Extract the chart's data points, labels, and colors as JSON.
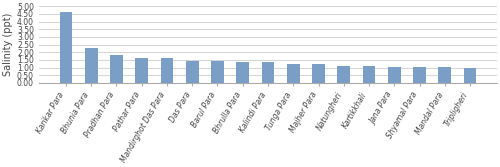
{
  "categories": [
    "Karikar Para",
    "Bhunia Para",
    "Pradhan Para",
    "Pathar Para",
    "Mandirghot Das Para",
    "Das Para",
    "Barul Para",
    "Bhrulla Para",
    "Kalindi Para",
    "Tunga Para",
    "Majher Para",
    "Natungheri",
    "Kartikkhali",
    "Jana Para",
    "Shyamal Para",
    "Mandal Para",
    "Tripligheri"
  ],
  "values": [
    4.65,
    2.25,
    1.8,
    1.65,
    1.63,
    1.42,
    1.42,
    1.38,
    1.38,
    1.25,
    1.22,
    1.08,
    1.08,
    1.05,
    1.02,
    1.02,
    0.98
  ],
  "bar_color": "#7B9EC6",
  "ylabel": "Salinity (ppt)",
  "ylim": [
    0,
    5.0
  ],
  "yticks": [
    0.0,
    0.5,
    1.0,
    1.5,
    2.0,
    2.5,
    3.0,
    3.5,
    4.0,
    4.5,
    5.0
  ],
  "tick_fontsize": 5.5,
  "ylabel_fontsize": 7,
  "bar_width": 0.5,
  "bg_color": "#FFFFFF",
  "grid_color": "#CCCCCC",
  "spine_color": "#AAAAAA"
}
